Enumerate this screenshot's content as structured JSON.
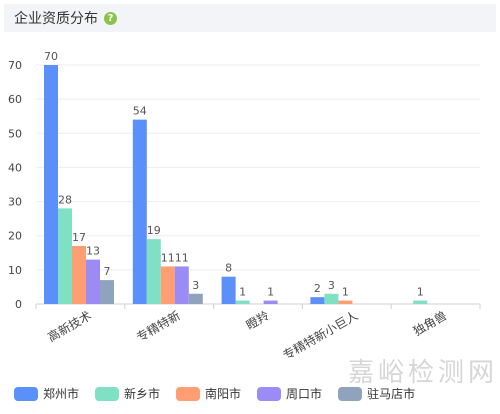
{
  "header": {
    "title": "企业资质分布",
    "help_icon": "?"
  },
  "watermark": {
    "text": "嘉峪检测网"
  },
  "colors": [
    "#5b8ff9",
    "#7fe0c3",
    "#ff9d73",
    "#9b8cf5",
    "#8fa3bd"
  ],
  "chart_data": {
    "type": "bar",
    "title": "企业资质分布",
    "categories": [
      "高新技术",
      "专精特新",
      "瞪羚",
      "专精特新小巨人",
      "独角兽"
    ],
    "series": [
      {
        "name": "郑州市",
        "values": [
          70,
          54,
          8,
          2,
          null
        ]
      },
      {
        "name": "新乡市",
        "values": [
          28,
          19,
          1,
          3,
          1
        ]
      },
      {
        "name": "南阳市",
        "values": [
          17,
          11,
          null,
          1,
          null
        ]
      },
      {
        "name": "周口市",
        "values": [
          13,
          11,
          1,
          null,
          null
        ]
      },
      {
        "name": "驻马店市",
        "values": [
          7,
          3,
          null,
          null,
          null
        ]
      }
    ],
    "ylim": [
      0,
      70
    ],
    "yticks": [
      0,
      10,
      20,
      30,
      40,
      50,
      60,
      70
    ],
    "grid": true,
    "legend_position": "bottom-left"
  }
}
